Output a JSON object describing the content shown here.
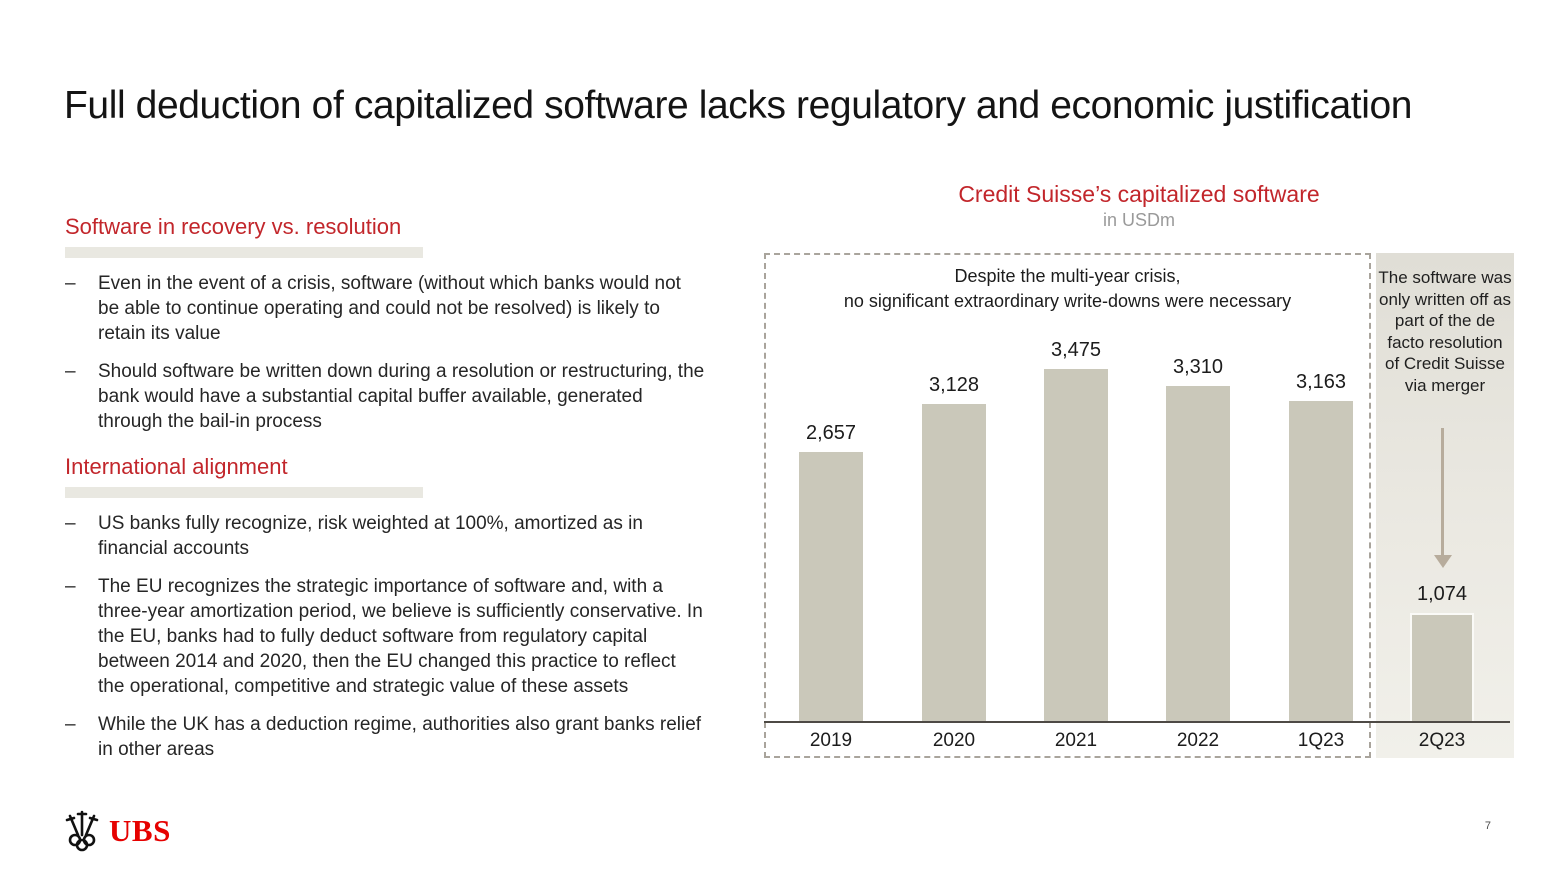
{
  "slide": {
    "title": "Full deduction of capitalized software lacks regulatory and economic justification",
    "page_number": "7"
  },
  "brand": {
    "logo_text": "UBS",
    "logo_icon": "ubs-three-keys-icon",
    "logo_color": "#e60100"
  },
  "left_column": {
    "bullet_marker": "–",
    "sections": [
      {
        "heading": "Software in recovery vs. resolution",
        "bullets": [
          "Even in the event of a crisis, software (without which banks would not be able to continue operating and could not be resolved) is likely to retain its value",
          "Should software be written down during a resolution or restructuring, the bank would have a substantial capital buffer available, generated through the bail-in process"
        ]
      },
      {
        "heading": "International alignment",
        "bullets": [
          "US banks fully recognize, risk weighted at 100%, amortized as in financial accounts",
          "The EU recognizes the strategic importance of software and, with a three-year amortization period, we believe is sufficiently conservative. In the EU, banks had to fully deduct software from regulatory capital between 2014 and 2020, then the EU changed this practice to reflect the operational, competitive and strategic value of these assets",
          "While the UK has a deduction regime, authorities also grant banks relief in other areas"
        ]
      }
    ]
  },
  "chart": {
    "title": "Credit Suisse’s capitalized software",
    "subtitle": "in USDm",
    "annotation_lines": [
      "Despite the multi-year crisis,",
      "no significant extraordinary write-downs were necessary"
    ],
    "side_note": "The software was only written off as part of the de facto resolution of Credit Suisse via merger"
  },
  "chart_data": {
    "type": "bar",
    "title": "Credit Suisse’s capitalized software",
    "subtitle": "in USDm",
    "categories": [
      "2019",
      "2020",
      "2021",
      "2022",
      "1Q23",
      "2Q23"
    ],
    "values": [
      2657,
      3128,
      3475,
      3310,
      3163,
      1074
    ],
    "value_labels": [
      "2,657",
      "3,128",
      "3,475",
      "3,310",
      "3,163",
      "1,074"
    ],
    "ylim": [
      0,
      3600
    ],
    "grid": false,
    "legend": false,
    "annotation": "Despite the multi-year crisis, no significant extraordinary write-downs were necessary",
    "side_note": "The software was only written off as part of the de facto resolution of Credit Suisse via merger",
    "highlight_region": "2Q23",
    "bar_color": "#cac8ba"
  },
  "colors": {
    "accent_red": "#c2262b",
    "bar": "#cac8ba",
    "panel_bg": "#e9e7e0",
    "dashed_border": "#a9a49c",
    "axis": "#4e4a45",
    "arrow": "#b7ac9c"
  }
}
